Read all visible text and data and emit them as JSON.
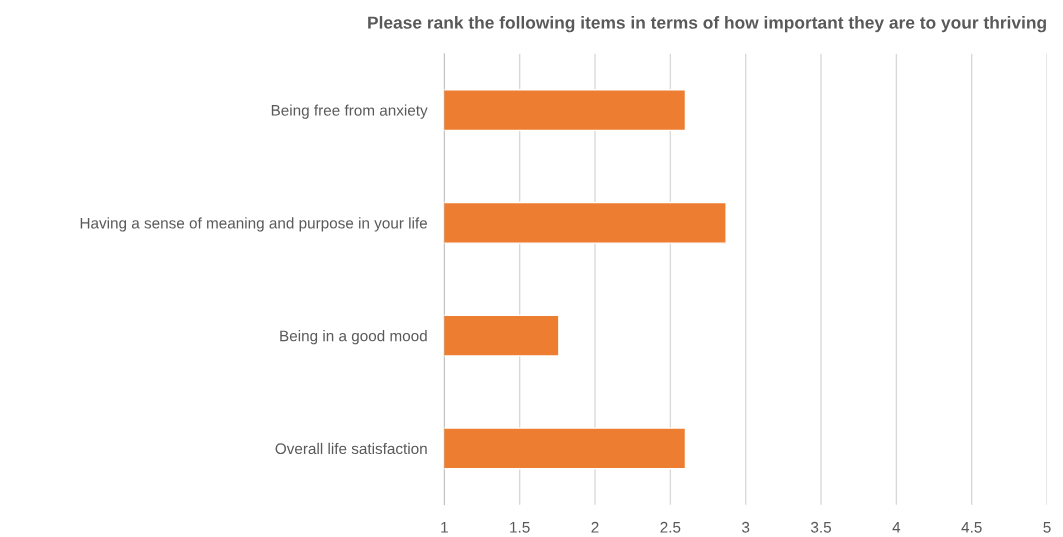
{
  "chart_data": {
    "type": "bar",
    "orientation": "horizontal",
    "title": "Please rank the following items in terms of how important they are to your thriving",
    "categories": [
      "Being free from anxiety",
      "Having a sense of meaning and purpose in your life",
      "Being in a good mood",
      "Overall life satisfaction"
    ],
    "values": [
      2.6,
      2.87,
      1.76,
      2.6
    ],
    "color": "#ed7d31",
    "xlim": [
      1,
      5
    ],
    "xticks": [
      1,
      1.5,
      2,
      2.5,
      3,
      3.5,
      4,
      4.5,
      5
    ],
    "grid": "x"
  }
}
